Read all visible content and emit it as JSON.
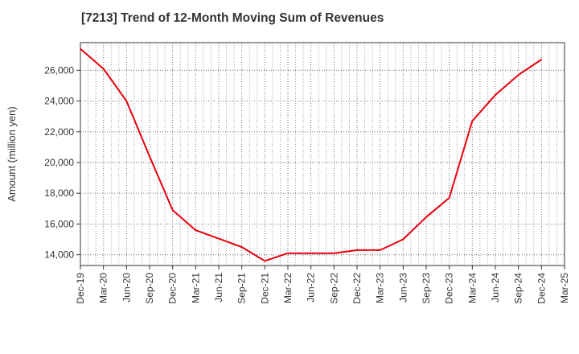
{
  "chart_data": {
    "type": "line",
    "title": "[7213]  Trend of 12-Month Moving Sum of Revenues",
    "xlabel": "",
    "ylabel": "Amount (million yen)",
    "x_ticks": [
      "Dec-19",
      "Mar-20",
      "Jun-20",
      "Sep-20",
      "Dec-20",
      "Mar-21",
      "Jun-21",
      "Sep-21",
      "Dec-21",
      "Mar-22",
      "Jun-22",
      "Sep-22",
      "Dec-22",
      "Mar-23",
      "Jun-23",
      "Sep-23",
      "Dec-23",
      "Mar-24",
      "Jun-24",
      "Sep-24",
      "Dec-24",
      "Mar-25"
    ],
    "y_ticks": [
      14000,
      16000,
      18000,
      20000,
      22000,
      24000,
      26000
    ],
    "y_tick_labels": [
      "14,000",
      "16,000",
      "18,000",
      "20,000",
      "22,000",
      "24,000",
      "26,000"
    ],
    "ylim": [
      13300,
      27800
    ],
    "grid": true,
    "series": [
      {
        "x": [
          "Dec-19",
          "Mar-20",
          "Jun-20",
          "Sep-20",
          "Dec-20",
          "Mar-21",
          "Jun-21",
          "Sep-21",
          "Dec-21",
          "Mar-22",
          "Jun-22",
          "Sep-22",
          "Dec-22",
          "Mar-23",
          "Jun-23",
          "Sep-23",
          "Dec-23",
          "Mar-24",
          "Jun-24",
          "Sep-24",
          "Dec-24"
        ],
        "values": [
          27400,
          26100,
          24000,
          20400,
          16900,
          15600,
          15050,
          14500,
          13600,
          14100,
          14100,
          14100,
          14300,
          14300,
          15000,
          16450,
          17700,
          22700,
          24400,
          25700,
          26700
        ],
        "color": "#e8000b"
      }
    ]
  }
}
